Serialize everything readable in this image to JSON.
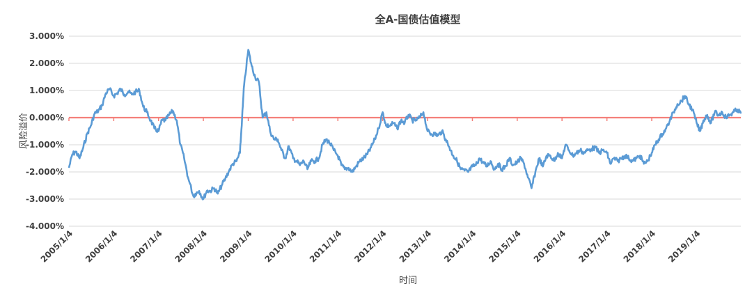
{
  "chart_data": {
    "type": "line",
    "title": "全A-国债估值模型",
    "xlabel": "时间",
    "ylabel": "风险溢价",
    "ylim": [
      -0.04,
      0.03
    ],
    "y_ticks": [
      0.03,
      0.02,
      0.01,
      0.0,
      -0.01,
      -0.02,
      -0.03,
      -0.04
    ],
    "y_tick_labels": [
      "3.000%",
      "2.000%",
      "1.000%",
      "0.000%",
      "-1.000%",
      "-2.000%",
      "-3.000%",
      "-4.000%"
    ],
    "x_tick_labels": [
      "2005/1/4",
      "2006/1/4",
      "2007/1/4",
      "2008/1/4",
      "2009/1/4",
      "2010/1/4",
      "2011/1/4",
      "2012/1/4",
      "2013/1/4",
      "2014/1/4",
      "2015/1/4",
      "2016/1/4",
      "2017/1/4",
      "2018/1/4",
      "2019/1/4"
    ],
    "xlim": [
      "2005-01-04",
      "2019-12-31"
    ],
    "grid": true,
    "legend": "none",
    "colors": {
      "series": "#5B9BD5",
      "zero_line": "#F4807A",
      "grid": "#D9D9D9",
      "text": "#404040"
    },
    "series": [
      {
        "x": [
          "2005-01-04",
          "2005-02-01",
          "2005-03-01",
          "2005-04-01",
          "2005-05-01",
          "2005-06-01",
          "2005-07-01",
          "2005-08-01",
          "2005-09-01",
          "2005-10-01",
          "2005-11-01",
          "2005-12-01",
          "2006-01-04",
          "2006-02-01",
          "2006-03-01",
          "2006-04-01",
          "2006-05-01",
          "2006-06-01",
          "2006-07-01",
          "2006-08-01",
          "2006-09-01",
          "2006-10-01",
          "2006-11-01",
          "2006-12-01",
          "2007-01-04",
          "2007-02-01",
          "2007-03-01",
          "2007-04-01",
          "2007-05-01",
          "2007-06-01",
          "2007-07-01",
          "2007-08-01",
          "2007-09-01",
          "2007-10-16",
          "2007-11-01",
          "2007-12-01",
          "2008-01-04",
          "2008-02-01",
          "2008-03-01",
          "2008-04-01",
          "2008-05-01",
          "2008-06-01",
          "2008-07-01",
          "2008-08-01",
          "2008-09-01",
          "2008-10-01",
          "2008-10-28",
          "2008-11-15",
          "2008-12-01",
          "2009-01-04",
          "2009-02-01",
          "2009-03-01",
          "2009-04-01",
          "2009-05-01",
          "2009-06-01",
          "2009-07-01",
          "2009-08-01",
          "2009-09-01",
          "2009-10-01",
          "2009-11-01",
          "2009-12-01",
          "2010-01-04",
          "2010-02-01",
          "2010-03-01",
          "2010-04-01",
          "2010-05-01",
          "2010-06-01",
          "2010-07-01",
          "2010-08-01",
          "2010-09-01",
          "2010-10-01",
          "2010-11-01",
          "2010-12-01",
          "2011-01-04",
          "2011-02-01",
          "2011-03-01",
          "2011-04-01",
          "2011-05-01",
          "2011-06-01",
          "2011-07-01",
          "2011-08-01",
          "2011-09-01",
          "2011-10-01",
          "2011-11-01",
          "2011-12-01",
          "2012-01-04",
          "2012-02-01",
          "2012-03-01",
          "2012-04-01",
          "2012-05-01",
          "2012-06-01",
          "2012-07-01",
          "2012-08-01",
          "2012-09-01",
          "2012-10-01",
          "2012-11-01",
          "2012-12-01",
          "2013-01-04",
          "2013-02-01",
          "2013-03-01",
          "2013-04-01",
          "2013-05-01",
          "2013-06-01",
          "2013-07-01",
          "2013-08-01",
          "2013-09-01",
          "2013-10-01",
          "2013-11-01",
          "2013-12-01",
          "2014-01-04",
          "2014-02-01",
          "2014-03-01",
          "2014-04-01",
          "2014-05-01",
          "2014-06-01",
          "2014-07-01",
          "2014-08-01",
          "2014-09-01",
          "2014-10-01",
          "2014-11-01",
          "2014-12-01",
          "2015-01-04",
          "2015-02-01",
          "2015-03-01",
          "2015-04-01",
          "2015-05-01",
          "2015-06-01",
          "2015-07-01",
          "2015-08-01",
          "2015-09-01",
          "2015-10-01",
          "2015-11-01",
          "2015-12-01",
          "2016-01-04",
          "2016-02-01",
          "2016-03-01",
          "2016-04-01",
          "2016-05-01",
          "2016-06-01",
          "2016-07-01",
          "2016-08-01",
          "2016-09-01",
          "2016-10-01",
          "2016-11-01",
          "2016-12-01",
          "2017-01-04",
          "2017-02-01",
          "2017-03-01",
          "2017-04-01",
          "2017-05-01",
          "2017-06-01",
          "2017-07-01",
          "2017-08-01",
          "2017-09-01",
          "2017-10-01",
          "2017-11-01",
          "2017-12-01",
          "2018-01-04",
          "2018-02-01",
          "2018-03-01",
          "2018-04-01",
          "2018-05-01",
          "2018-06-01",
          "2018-07-01",
          "2018-08-01",
          "2018-09-01",
          "2018-10-01",
          "2018-11-01",
          "2018-12-01",
          "2019-01-04",
          "2019-02-01",
          "2019-03-01",
          "2019-04-01",
          "2019-05-01",
          "2019-06-01",
          "2019-07-01",
          "2019-08-01",
          "2019-09-01",
          "2019-10-01",
          "2019-11-01",
          "2019-12-01",
          "2019-12-31"
        ],
        "values": [
          -0.0185,
          -0.0135,
          -0.0125,
          -0.015,
          -0.011,
          -0.006,
          -0.003,
          0.0015,
          0.0025,
          0.0045,
          0.009,
          0.0105,
          0.008,
          0.009,
          0.0105,
          0.0085,
          0.0095,
          0.0085,
          0.0095,
          0.01,
          0.004,
          0.002,
          -0.001,
          -0.004,
          -0.005,
          -0.001,
          -0.001,
          0.001,
          0.0025,
          -0.001,
          -0.01,
          -0.015,
          -0.022,
          -0.029,
          -0.028,
          -0.027,
          -0.03,
          -0.027,
          -0.027,
          -0.026,
          -0.028,
          -0.025,
          -0.0225,
          -0.0195,
          -0.017,
          -0.016,
          -0.013,
          0.0,
          0.012,
          0.025,
          0.019,
          0.015,
          0.013,
          0.0,
          0.002,
          -0.005,
          -0.008,
          -0.008,
          -0.012,
          -0.015,
          -0.0105,
          -0.015,
          -0.016,
          -0.0175,
          -0.016,
          -0.019,
          -0.016,
          -0.016,
          -0.015,
          -0.01,
          -0.008,
          -0.0095,
          -0.012,
          -0.014,
          -0.0175,
          -0.019,
          -0.0185,
          -0.02,
          -0.018,
          -0.016,
          -0.015,
          -0.0135,
          -0.011,
          -0.008,
          -0.004,
          0.002,
          -0.003,
          -0.003,
          -0.002,
          -0.004,
          -0.001,
          -0.002,
          0.001,
          -0.001,
          -0.001,
          0.0,
          0.002,
          -0.005,
          -0.006,
          -0.006,
          -0.0065,
          -0.005,
          -0.008,
          -0.011,
          -0.014,
          -0.016,
          -0.019,
          -0.0195,
          -0.02,
          -0.018,
          -0.0175,
          -0.015,
          -0.0165,
          -0.018,
          -0.016,
          -0.019,
          -0.017,
          -0.019,
          -0.018,
          -0.015,
          -0.0175,
          -0.0165,
          -0.015,
          -0.017,
          -0.022,
          -0.026,
          -0.02,
          -0.015,
          -0.018,
          -0.014,
          -0.014,
          -0.016,
          -0.013,
          -0.015,
          -0.01,
          -0.012,
          -0.014,
          -0.013,
          -0.012,
          -0.013,
          -0.012,
          -0.0115,
          -0.011,
          -0.013,
          -0.012,
          -0.013,
          -0.017,
          -0.015,
          -0.016,
          -0.015,
          -0.014,
          -0.015,
          -0.016,
          -0.015,
          -0.014,
          -0.017,
          -0.016,
          -0.013,
          -0.01,
          -0.008,
          -0.006,
          -0.004,
          -0.001,
          0.002,
          0.005,
          0.006,
          0.008,
          0.005,
          0.003,
          -0.002,
          -0.005,
          -0.001,
          0.001,
          -0.002,
          0.002,
          0.001,
          0.002,
          0.0,
          0.001,
          0.002,
          0.003,
          0.0015
        ]
      }
    ]
  }
}
